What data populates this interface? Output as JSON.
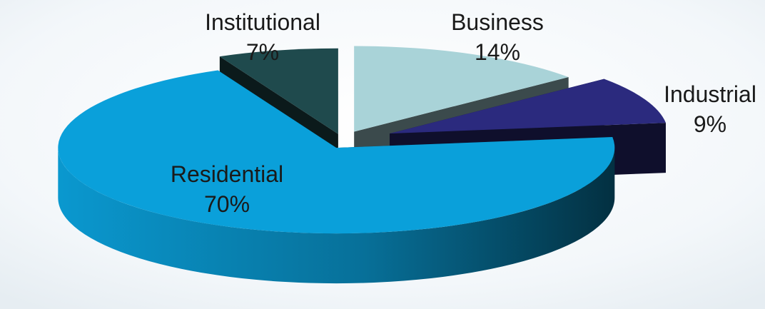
{
  "chart_data": {
    "type": "pie",
    "title": "",
    "categories": [
      "Business",
      "Industrial",
      "Residential",
      "Institutional"
    ],
    "values": [
      14,
      9,
      70,
      7
    ],
    "labels": [
      "14%",
      "9%",
      "70%",
      "7%"
    ],
    "colors": {
      "Business": "#a9d3d8",
      "Industrial": "#2b2a7e",
      "Residential": "#0aa0da",
      "Institutional": "#1f4a4d"
    },
    "style": "3d-exploded"
  }
}
